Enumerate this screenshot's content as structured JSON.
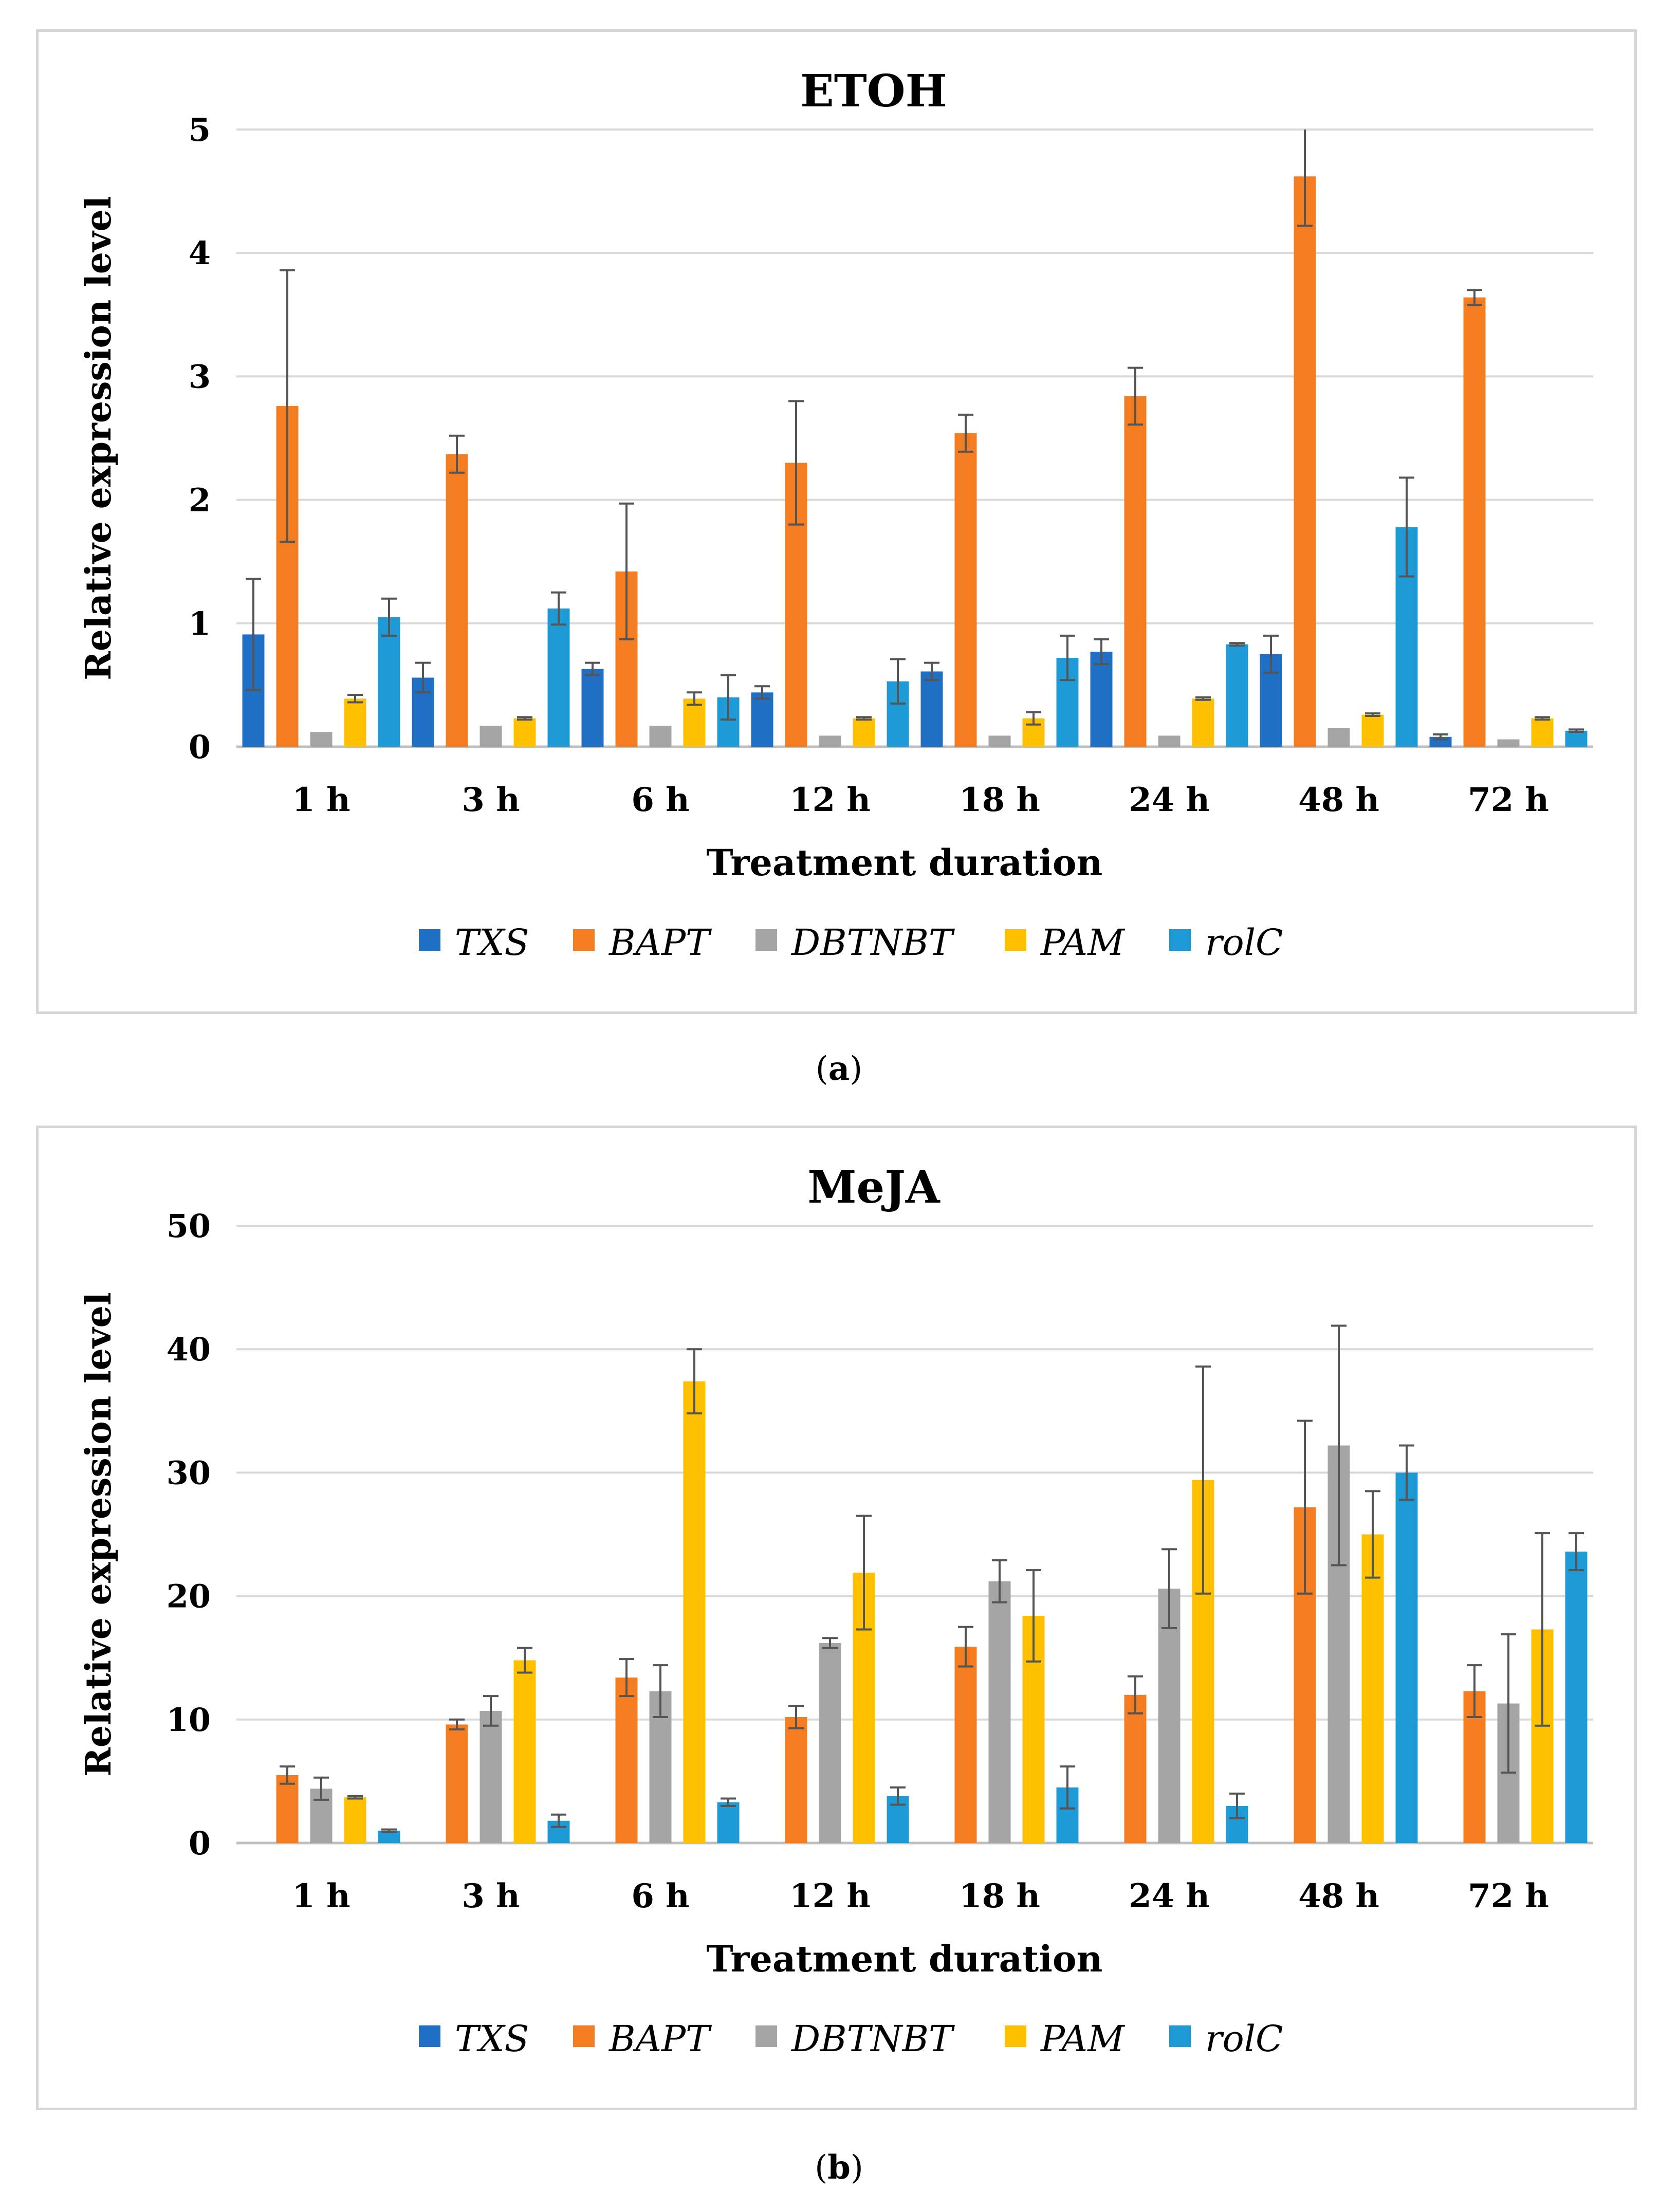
{
  "captions": [
    "a",
    "b"
  ],
  "chart_data": [
    {
      "type": "bar",
      "panel": "a",
      "title": "ETOH",
      "xlabel": "Treatment duration",
      "ylabel": "Relative  expression level",
      "ylim": [
        0,
        5
      ],
      "yticks": [
        0,
        1,
        2,
        3,
        4,
        5
      ],
      "ytick_labels": [
        "0",
        "1",
        "2",
        "3",
        "4",
        "5"
      ],
      "grid": true,
      "legend_position": "bottom",
      "categories": [
        "1 h",
        "3 h",
        "6 h",
        "12 h",
        "18 h",
        "24 h",
        "48 h",
        "72 h"
      ],
      "series": [
        {
          "name": "TXS",
          "color": "#1F6FC5",
          "values": [
            0.91,
            0.56,
            0.63,
            0.44,
            0.61,
            0.77,
            0.75,
            0.08
          ],
          "errors": [
            0.45,
            0.12,
            0.05,
            0.05,
            0.07,
            0.1,
            0.15,
            0.02
          ]
        },
        {
          "name": "BAPT",
          "color": "#F47D22",
          "values": [
            2.76,
            2.37,
            1.42,
            2.3,
            2.54,
            2.84,
            4.62,
            3.64
          ],
          "errors": [
            1.1,
            0.15,
            0.55,
            0.5,
            0.15,
            0.23,
            0.4,
            0.06
          ]
        },
        {
          "name": "DBTNBT",
          "color": "#A5A5A5",
          "values": [
            0.12,
            0.17,
            0.17,
            0.09,
            0.09,
            0.09,
            0.15,
            0.06
          ],
          "errors": [
            0,
            0,
            0,
            0,
            0,
            0,
            0,
            0
          ]
        },
        {
          "name": "PAM",
          "color": "#FFC000",
          "values": [
            0.39,
            0.23,
            0.39,
            0.23,
            0.23,
            0.39,
            0.26,
            0.23
          ],
          "errors": [
            0.03,
            0.01,
            0.05,
            0.01,
            0.05,
            0.01,
            0.01,
            0.01
          ]
        },
        {
          "name": "rolC",
          "color": "#1E9BD7",
          "values": [
            1.05,
            1.12,
            0.4,
            0.53,
            0.72,
            0.83,
            1.78,
            0.13
          ],
          "errors": [
            0.15,
            0.13,
            0.18,
            0.18,
            0.18,
            0.01,
            0.4,
            0.01
          ]
        }
      ]
    },
    {
      "type": "bar",
      "panel": "b",
      "title": "MeJA",
      "xlabel": "Treatment duration",
      "ylabel": "Relative  expression level",
      "ylim": [
        0,
        50
      ],
      "yticks": [
        0,
        10,
        20,
        30,
        40,
        50
      ],
      "ytick_labels": [
        "0",
        "10",
        "20",
        "30",
        "40",
        "50"
      ],
      "grid": true,
      "legend_position": "bottom",
      "categories": [
        "1 h",
        "3 h",
        "6 h",
        "12 h",
        "18 h",
        "24 h",
        "48 h",
        "72 h"
      ],
      "series": [
        {
          "name": "TXS",
          "color": "#1F6FC5",
          "values": [
            0,
            0,
            0,
            0,
            0,
            0,
            0,
            0
          ],
          "errors": [
            0,
            0,
            0,
            0,
            0,
            0,
            0,
            0
          ]
        },
        {
          "name": "BAPT",
          "color": "#F47D22",
          "values": [
            5.5,
            9.6,
            13.4,
            10.2,
            15.9,
            12.0,
            27.2,
            12.3
          ],
          "errors": [
            0.7,
            0.4,
            1.5,
            0.9,
            1.6,
            1.5,
            7.0,
            2.1
          ]
        },
        {
          "name": "DBTNBT",
          "color": "#A5A5A5",
          "values": [
            4.4,
            10.7,
            12.3,
            16.2,
            21.2,
            20.6,
            32.2,
            11.3
          ],
          "errors": [
            0.9,
            1.2,
            2.1,
            0.4,
            1.7,
            3.2,
            9.7,
            5.6
          ]
        },
        {
          "name": "PAM",
          "color": "#FFC000",
          "values": [
            3.7,
            14.8,
            37.4,
            21.9,
            18.4,
            29.4,
            25.0,
            17.3
          ],
          "errors": [
            0.1,
            1.0,
            2.6,
            4.6,
            3.7,
            9.2,
            3.5,
            7.8
          ]
        },
        {
          "name": "rolC",
          "color": "#1E9BD7",
          "values": [
            1.0,
            1.8,
            3.3,
            3.8,
            4.5,
            3.0,
            30.0,
            23.6
          ],
          "errors": [
            0.1,
            0.5,
            0.3,
            0.7,
            1.7,
            1.0,
            2.2,
            1.5
          ]
        }
      ]
    }
  ]
}
